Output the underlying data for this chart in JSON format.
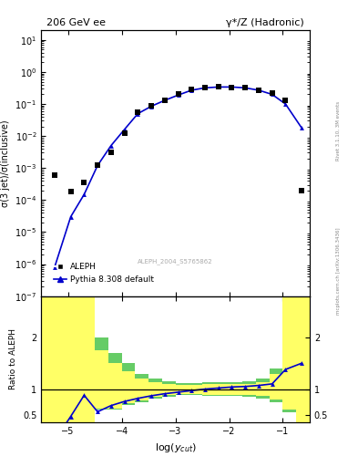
{
  "title_left": "206 GeV ee",
  "title_right": "γ*/Z (Hadronic)",
  "ylabel_main": "σ(3 jet)/σ(inclusive)",
  "ylabel_ratio": "Ratio to ALEPH",
  "right_label_top": "Rivet 3.1.10, 3M events",
  "right_label_bottom": "mcplots.cern.ch [arXiv:1306.3436]",
  "watermark": "ALEPH_2004_S5765862",
  "xlim": [
    -5.5,
    -0.5
  ],
  "ylim_main": [
    1e-07,
    20
  ],
  "ylim_ratio": [
    0.35,
    2.8
  ],
  "data_x": [
    -5.25,
    -4.95,
    -4.7,
    -4.45,
    -4.2,
    -3.95,
    -3.7,
    -3.45,
    -3.2,
    -2.95,
    -2.7,
    -2.45,
    -2.2,
    -1.95,
    -1.7,
    -1.45,
    -1.2,
    -0.95,
    -0.65
  ],
  "data_y": [
    0.0006,
    0.00018,
    0.00035,
    0.0012,
    0.003,
    0.012,
    0.055,
    0.09,
    0.13,
    0.2,
    0.28,
    0.32,
    0.34,
    0.33,
    0.32,
    0.27,
    0.22,
    0.13,
    0.0002
  ],
  "mc_x": [
    -5.25,
    -4.95,
    -4.7,
    -4.45,
    -4.2,
    -3.95,
    -3.7,
    -3.45,
    -3.2,
    -2.95,
    -2.7,
    -2.45,
    -2.2,
    -1.95,
    -1.7,
    -1.45,
    -1.2,
    -0.95,
    -0.65
  ],
  "mc_y": [
    8e-07,
    3e-05,
    0.00015,
    0.0012,
    0.005,
    0.016,
    0.05,
    0.085,
    0.13,
    0.19,
    0.27,
    0.32,
    0.34,
    0.34,
    0.32,
    0.27,
    0.2,
    0.1,
    0.018
  ],
  "ratio_x": [
    -5.25,
    -4.95,
    -4.7,
    -4.45,
    -4.2,
    -3.95,
    -3.7,
    -3.45,
    -3.2,
    -2.95,
    -2.7,
    -2.45,
    -2.2,
    -1.95,
    -1.7,
    -1.45,
    -1.2,
    -0.95,
    -0.65
  ],
  "ratio_y": [
    0.001,
    0.47,
    0.88,
    0.56,
    0.68,
    0.76,
    0.82,
    0.87,
    0.91,
    0.94,
    0.97,
    1.0,
    1.02,
    1.04,
    1.05,
    1.07,
    1.1,
    1.38,
    1.5
  ],
  "green_band_edges": [
    -5.5,
    -4.75,
    -4.5,
    -4.25,
    -4.0,
    -3.75,
    -3.5,
    -3.25,
    -3.0,
    -2.75,
    -2.5,
    -2.25,
    -2.0,
    -1.75,
    -1.5,
    -1.25,
    -1.0,
    -0.75,
    -0.5
  ],
  "green_band_ylow": [
    0.35,
    0.35,
    0.6,
    0.6,
    0.7,
    0.75,
    0.82,
    0.85,
    0.88,
    0.88,
    0.87,
    0.87,
    0.87,
    0.85,
    0.82,
    0.75,
    0.55,
    0.35,
    0.35
  ],
  "green_band_yhigh": [
    2.8,
    2.8,
    2.0,
    1.7,
    1.5,
    1.3,
    1.2,
    1.15,
    1.12,
    1.12,
    1.13,
    1.13,
    1.14,
    1.15,
    1.2,
    1.4,
    2.8,
    2.8,
    2.8
  ],
  "yellow_band_edges": [
    -5.5,
    -4.75,
    -4.5,
    -4.25,
    -4.0,
    -3.75,
    -3.5,
    -3.25,
    -3.0,
    -2.75,
    -2.5,
    -2.25,
    -2.0,
    -1.75,
    -1.5,
    -1.25,
    -1.0,
    -0.75,
    -0.5
  ],
  "yellow_band_ylow": [
    0.35,
    0.35,
    0.62,
    0.62,
    0.72,
    0.78,
    0.85,
    0.88,
    0.9,
    0.9,
    0.89,
    0.89,
    0.89,
    0.88,
    0.86,
    0.8,
    0.6,
    0.35,
    0.35
  ],
  "yellow_band_yhigh": [
    2.8,
    2.8,
    1.75,
    1.5,
    1.35,
    1.2,
    1.13,
    1.1,
    1.08,
    1.08,
    1.09,
    1.09,
    1.1,
    1.1,
    1.14,
    1.3,
    2.8,
    2.8,
    2.8
  ],
  "mc_color": "#0000cc",
  "data_color": "#000000",
  "green_color": "#66cc66",
  "yellow_color": "#ffff66",
  "ratio_line_color": "#0000cc",
  "hline_color": "#000000",
  "bg_color": "#ffffff"
}
